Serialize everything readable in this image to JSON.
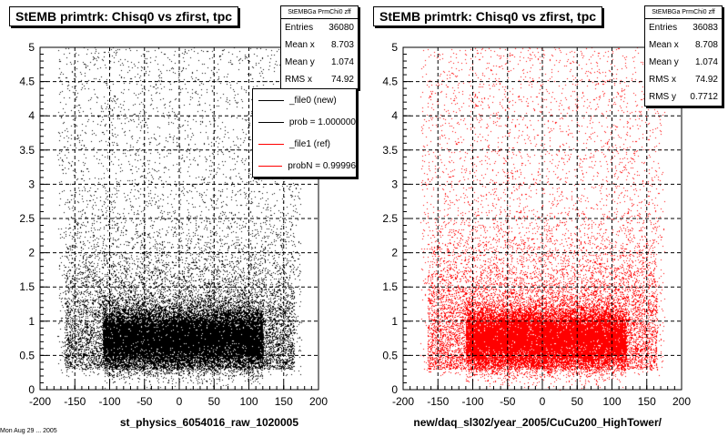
{
  "colors": {
    "black": "#000000",
    "red": "#ff0000"
  },
  "footer_timestamp": "Mon Aug 29 ... 2005",
  "panels": [
    {
      "title": "StEMB primtrk: Chisq0 vs zfirst, tpc",
      "xlabel": "st_physics_6054016_raw_1020005",
      "stats": {
        "name": "StEMBGa PrmChi0 zff",
        "rows": [
          {
            "label": "Entries",
            "value": "36080"
          },
          {
            "label": "Mean x",
            "value": "8.703"
          },
          {
            "label": "Mean y",
            "value": "1.074"
          },
          {
            "label": "RMS x",
            "value": "74.92"
          }
        ]
      },
      "legend": [
        {
          "label": "_file0 (new)",
          "color": "#000000"
        },
        {
          "label": "prob = 1.000000",
          "color": "#000000"
        },
        {
          "label": "_file1 (ref)",
          "color": "#ff0000"
        },
        {
          "label": "probN = 0.99996",
          "color": "#ff0000"
        }
      ]
    },
    {
      "title": "StEMB primtrk: Chisq0 vs zfirst, tpc",
      "xlabel": "new/daq_sl302/year_2005/CuCu200_HighTower/",
      "stats": {
        "name": "StEMBGa PrmChi0 zff",
        "rows": [
          {
            "label": "Entries",
            "value": "36083"
          },
          {
            "label": "Mean x",
            "value": "8.708"
          },
          {
            "label": "Mean y",
            "value": "1.074"
          },
          {
            "label": "RMS x",
            "value": "74.92"
          },
          {
            "label": "RMS y",
            "value": "0.7712"
          }
        ]
      }
    }
  ],
  "chart_data": [
    {
      "type": "scatter",
      "title": "StEMB primtrk: Chisq0 vs zfirst, tpc",
      "xlabel": "st_physics_6054016_raw_1020005",
      "ylabel": "",
      "xlim": [
        -200,
        200
      ],
      "ylim": [
        0,
        5
      ],
      "xticks": [
        -200,
        -150,
        -100,
        -50,
        0,
        50,
        100,
        150,
        200
      ],
      "yticks": [
        0,
        0.5,
        1,
        1.5,
        2,
        2.5,
        3,
        3.5,
        4,
        4.5,
        5
      ],
      "grid": true,
      "marker_color": "#000000",
      "entries": 36080,
      "distribution": {
        "x_range": [
          -165,
          165
        ],
        "core_x": [
          -110,
          120
        ],
        "core_y": [
          0.3,
          1.3
        ],
        "mean_x": 8.703,
        "mean_y": 1.074,
        "rms_x": 74.92
      }
    },
    {
      "type": "scatter",
      "title": "StEMB primtrk: Chisq0 vs zfirst, tpc",
      "xlabel": "new/daq_sl302/year_2005/CuCu200_HighTower/",
      "ylabel": "",
      "xlim": [
        -200,
        200
      ],
      "ylim": [
        0,
        5
      ],
      "xticks": [
        -200,
        -150,
        -100,
        -50,
        0,
        50,
        100,
        150,
        200
      ],
      "yticks": [
        0,
        0.5,
        1,
        1.5,
        2,
        2.5,
        3,
        3.5,
        4,
        4.5,
        5
      ],
      "grid": true,
      "marker_color": "#ff0000",
      "entries": 36083,
      "distribution": {
        "x_range": [
          -165,
          165
        ],
        "core_x": [
          -110,
          120
        ],
        "core_y": [
          0.3,
          1.3
        ],
        "mean_x": 8.708,
        "mean_y": 1.074,
        "rms_x": 74.92,
        "rms_y": 0.7712
      }
    }
  ]
}
